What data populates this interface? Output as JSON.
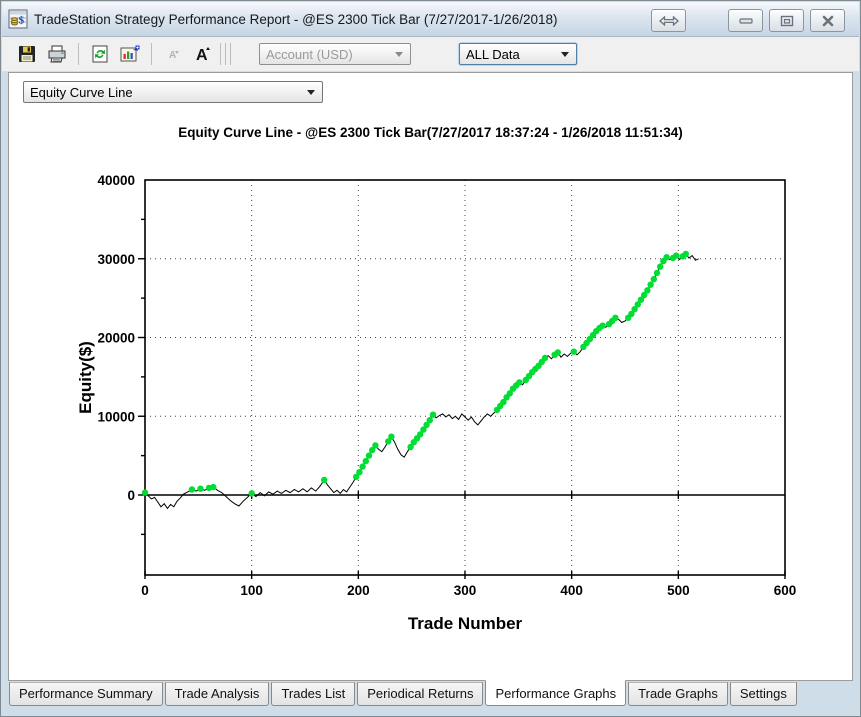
{
  "titlebar": {
    "title": "TradeStation Strategy Performance Report - @ES 2300 Tick Bar (7/27/2017-1/26/2018)",
    "app_icon": "tradestation-report-icon",
    "window_buttons": [
      "swap-icon",
      "minimize-icon",
      "restore-icon",
      "close-icon"
    ]
  },
  "toolbar": {
    "icons": [
      "save-icon",
      "print-icon",
      "refresh-icon",
      "export-report-icon",
      "decrease-font-icon",
      "increase-font-icon"
    ],
    "account_dropdown": {
      "value": "Account (USD)",
      "disabled": true
    },
    "data_dropdown": {
      "value": "ALL Data"
    }
  },
  "graph_type_dropdown": {
    "value": "Equity Curve Line"
  },
  "chart_data": {
    "type": "line",
    "title": "Equity Curve Line - @ES 2300 Tick Bar(7/27/2017 18:37:24 - 1/26/2018 11:51:34)",
    "xlabel": "Trade Number",
    "ylabel": "Equity($)",
    "xlim": [
      0,
      600
    ],
    "ylim": [
      -10000,
      40000
    ],
    "x_ticks": [
      0,
      100,
      200,
      300,
      400,
      500,
      600
    ],
    "y_ticks": [
      0,
      10000,
      20000,
      30000,
      40000
    ],
    "y_minor_step": 5000,
    "grid": "dotted",
    "legend": "none",
    "line_color": "#000000",
    "marker_color": "#00dd33",
    "marker_meaning": "new-equity-high-trade",
    "series": [
      {
        "name": "Equity",
        "points": [
          [
            0,
            300,
            1
          ],
          [
            3,
            -100,
            0
          ],
          [
            6,
            -500,
            0
          ],
          [
            9,
            -300,
            0
          ],
          [
            12,
            -900,
            0
          ],
          [
            15,
            -1500,
            0
          ],
          [
            18,
            -1100,
            0
          ],
          [
            21,
            -1700,
            0
          ],
          [
            24,
            -1200,
            0
          ],
          [
            27,
            -1500,
            0
          ],
          [
            30,
            -800,
            0
          ],
          [
            33,
            -400,
            0
          ],
          [
            36,
            100,
            0
          ],
          [
            40,
            400,
            0
          ],
          [
            44,
            700,
            1
          ],
          [
            48,
            500,
            0
          ],
          [
            52,
            800,
            1
          ],
          [
            56,
            600,
            0
          ],
          [
            60,
            900,
            1
          ],
          [
            64,
            1000,
            1
          ],
          [
            68,
            600,
            0
          ],
          [
            72,
            300,
            0
          ],
          [
            76,
            -200,
            0
          ],
          [
            80,
            -700,
            0
          ],
          [
            84,
            -1100,
            0
          ],
          [
            88,
            -1400,
            0
          ],
          [
            92,
            -800,
            0
          ],
          [
            96,
            -300,
            0
          ],
          [
            100,
            200,
            1
          ],
          [
            104,
            -200,
            0
          ],
          [
            108,
            300,
            0
          ],
          [
            112,
            -100,
            0
          ],
          [
            116,
            400,
            0
          ],
          [
            120,
            100,
            0
          ],
          [
            124,
            500,
            0
          ],
          [
            128,
            200,
            0
          ],
          [
            132,
            600,
            0
          ],
          [
            136,
            300,
            0
          ],
          [
            140,
            700,
            0
          ],
          [
            144,
            400,
            0
          ],
          [
            148,
            800,
            0
          ],
          [
            152,
            400,
            0
          ],
          [
            156,
            900,
            0
          ],
          [
            160,
            500,
            0
          ],
          [
            164,
            1100,
            0
          ],
          [
            168,
            1900,
            1
          ],
          [
            171,
            1300,
            0
          ],
          [
            174,
            800,
            0
          ],
          [
            177,
            300,
            0
          ],
          [
            180,
            600,
            0
          ],
          [
            183,
            200,
            0
          ],
          [
            186,
            700,
            0
          ],
          [
            189,
            400,
            0
          ],
          [
            192,
            1000,
            0
          ],
          [
            195,
            1600,
            0
          ],
          [
            198,
            2300,
            1
          ],
          [
            201,
            2900,
            1
          ],
          [
            204,
            3600,
            1
          ],
          [
            207,
            4300,
            1
          ],
          [
            210,
            5000,
            1
          ],
          [
            213,
            5700,
            1
          ],
          [
            216,
            6300,
            1
          ],
          [
            219,
            5800,
            0
          ],
          [
            222,
            5500,
            0
          ],
          [
            225,
            6100,
            0
          ],
          [
            228,
            6800,
            1
          ],
          [
            231,
            7400,
            1
          ],
          [
            234,
            6700,
            0
          ],
          [
            237,
            5800,
            0
          ],
          [
            240,
            5100,
            0
          ],
          [
            243,
            4800,
            0
          ],
          [
            246,
            5500,
            0
          ],
          [
            249,
            6100,
            1
          ],
          [
            252,
            6700,
            1
          ],
          [
            255,
            7200,
            1
          ],
          [
            258,
            7700,
            1
          ],
          [
            261,
            8300,
            1
          ],
          [
            264,
            8900,
            1
          ],
          [
            267,
            9500,
            1
          ],
          [
            270,
            10200,
            1
          ],
          [
            273,
            9800,
            0
          ],
          [
            276,
            10100,
            0
          ],
          [
            279,
            10300,
            0
          ],
          [
            282,
            9900,
            0
          ],
          [
            285,
            10200,
            0
          ],
          [
            288,
            9700,
            0
          ],
          [
            291,
            10000,
            0
          ],
          [
            294,
            9600,
            0
          ],
          [
            297,
            10300,
            0
          ],
          [
            300,
            9900,
            0
          ],
          [
            303,
            9500,
            0
          ],
          [
            306,
            9900,
            0
          ],
          [
            309,
            9300,
            0
          ],
          [
            312,
            8900,
            0
          ],
          [
            315,
            9400,
            0
          ],
          [
            318,
            9900,
            0
          ],
          [
            321,
            10300,
            0
          ],
          [
            324,
            10000,
            0
          ],
          [
            327,
            10400,
            0
          ],
          [
            330,
            10800,
            1
          ],
          [
            333,
            11300,
            1
          ],
          [
            336,
            11800,
            1
          ],
          [
            339,
            12400,
            1
          ],
          [
            342,
            12900,
            1
          ],
          [
            345,
            13500,
            1
          ],
          [
            348,
            13900,
            1
          ],
          [
            351,
            14300,
            1
          ],
          [
            354,
            14000,
            0
          ],
          [
            357,
            14600,
            1
          ],
          [
            360,
            15100,
            1
          ],
          [
            363,
            15600,
            1
          ],
          [
            366,
            16000,
            1
          ],
          [
            369,
            16400,
            1
          ],
          [
            372,
            16900,
            1
          ],
          [
            375,
            17400,
            1
          ],
          [
            378,
            17700,
            0
          ],
          [
            381,
            17300,
            0
          ],
          [
            384,
            17800,
            1
          ],
          [
            387,
            18100,
            1
          ],
          [
            390,
            17500,
            0
          ],
          [
            393,
            17900,
            0
          ],
          [
            396,
            17600,
            0
          ],
          [
            399,
            18000,
            0
          ],
          [
            402,
            18200,
            1
          ],
          [
            405,
            17800,
            0
          ],
          [
            408,
            18200,
            0
          ],
          [
            411,
            18800,
            1
          ],
          [
            414,
            19300,
            1
          ],
          [
            417,
            19800,
            1
          ],
          [
            420,
            20300,
            1
          ],
          [
            423,
            20800,
            1
          ],
          [
            426,
            21200,
            1
          ],
          [
            429,
            21500,
            1
          ],
          [
            432,
            21300,
            0
          ],
          [
            435,
            21700,
            1
          ],
          [
            438,
            22100,
            1
          ],
          [
            441,
            22500,
            1
          ],
          [
            444,
            22300,
            0
          ],
          [
            447,
            21900,
            0
          ],
          [
            450,
            22100,
            0
          ],
          [
            453,
            22500,
            1
          ],
          [
            456,
            23000,
            1
          ],
          [
            459,
            23600,
            1
          ],
          [
            462,
            24200,
            1
          ],
          [
            465,
            24800,
            1
          ],
          [
            468,
            25400,
            1
          ],
          [
            471,
            26000,
            1
          ],
          [
            474,
            26700,
            1
          ],
          [
            477,
            27400,
            1
          ],
          [
            480,
            28200,
            1
          ],
          [
            483,
            29000,
            1
          ],
          [
            486,
            29700,
            1
          ],
          [
            489,
            30200,
            1
          ],
          [
            492,
            29900,
            0
          ],
          [
            495,
            30100,
            1
          ],
          [
            498,
            30400,
            1
          ],
          [
            501,
            29900,
            0
          ],
          [
            504,
            30300,
            1
          ],
          [
            507,
            30600,
            1
          ],
          [
            510,
            30100,
            0
          ],
          [
            513,
            30400,
            0
          ],
          [
            516,
            29800,
            0
          ],
          [
            519,
            30000,
            0
          ]
        ]
      }
    ]
  },
  "tabs": {
    "items": [
      {
        "label": "Performance Summary",
        "active": false
      },
      {
        "label": "Trade Analysis",
        "active": false
      },
      {
        "label": "Trades List",
        "active": false
      },
      {
        "label": "Periodical Returns",
        "active": false
      },
      {
        "label": "Performance Graphs",
        "active": true
      },
      {
        "label": "Trade Graphs",
        "active": false
      },
      {
        "label": "Settings",
        "active": false
      }
    ]
  }
}
